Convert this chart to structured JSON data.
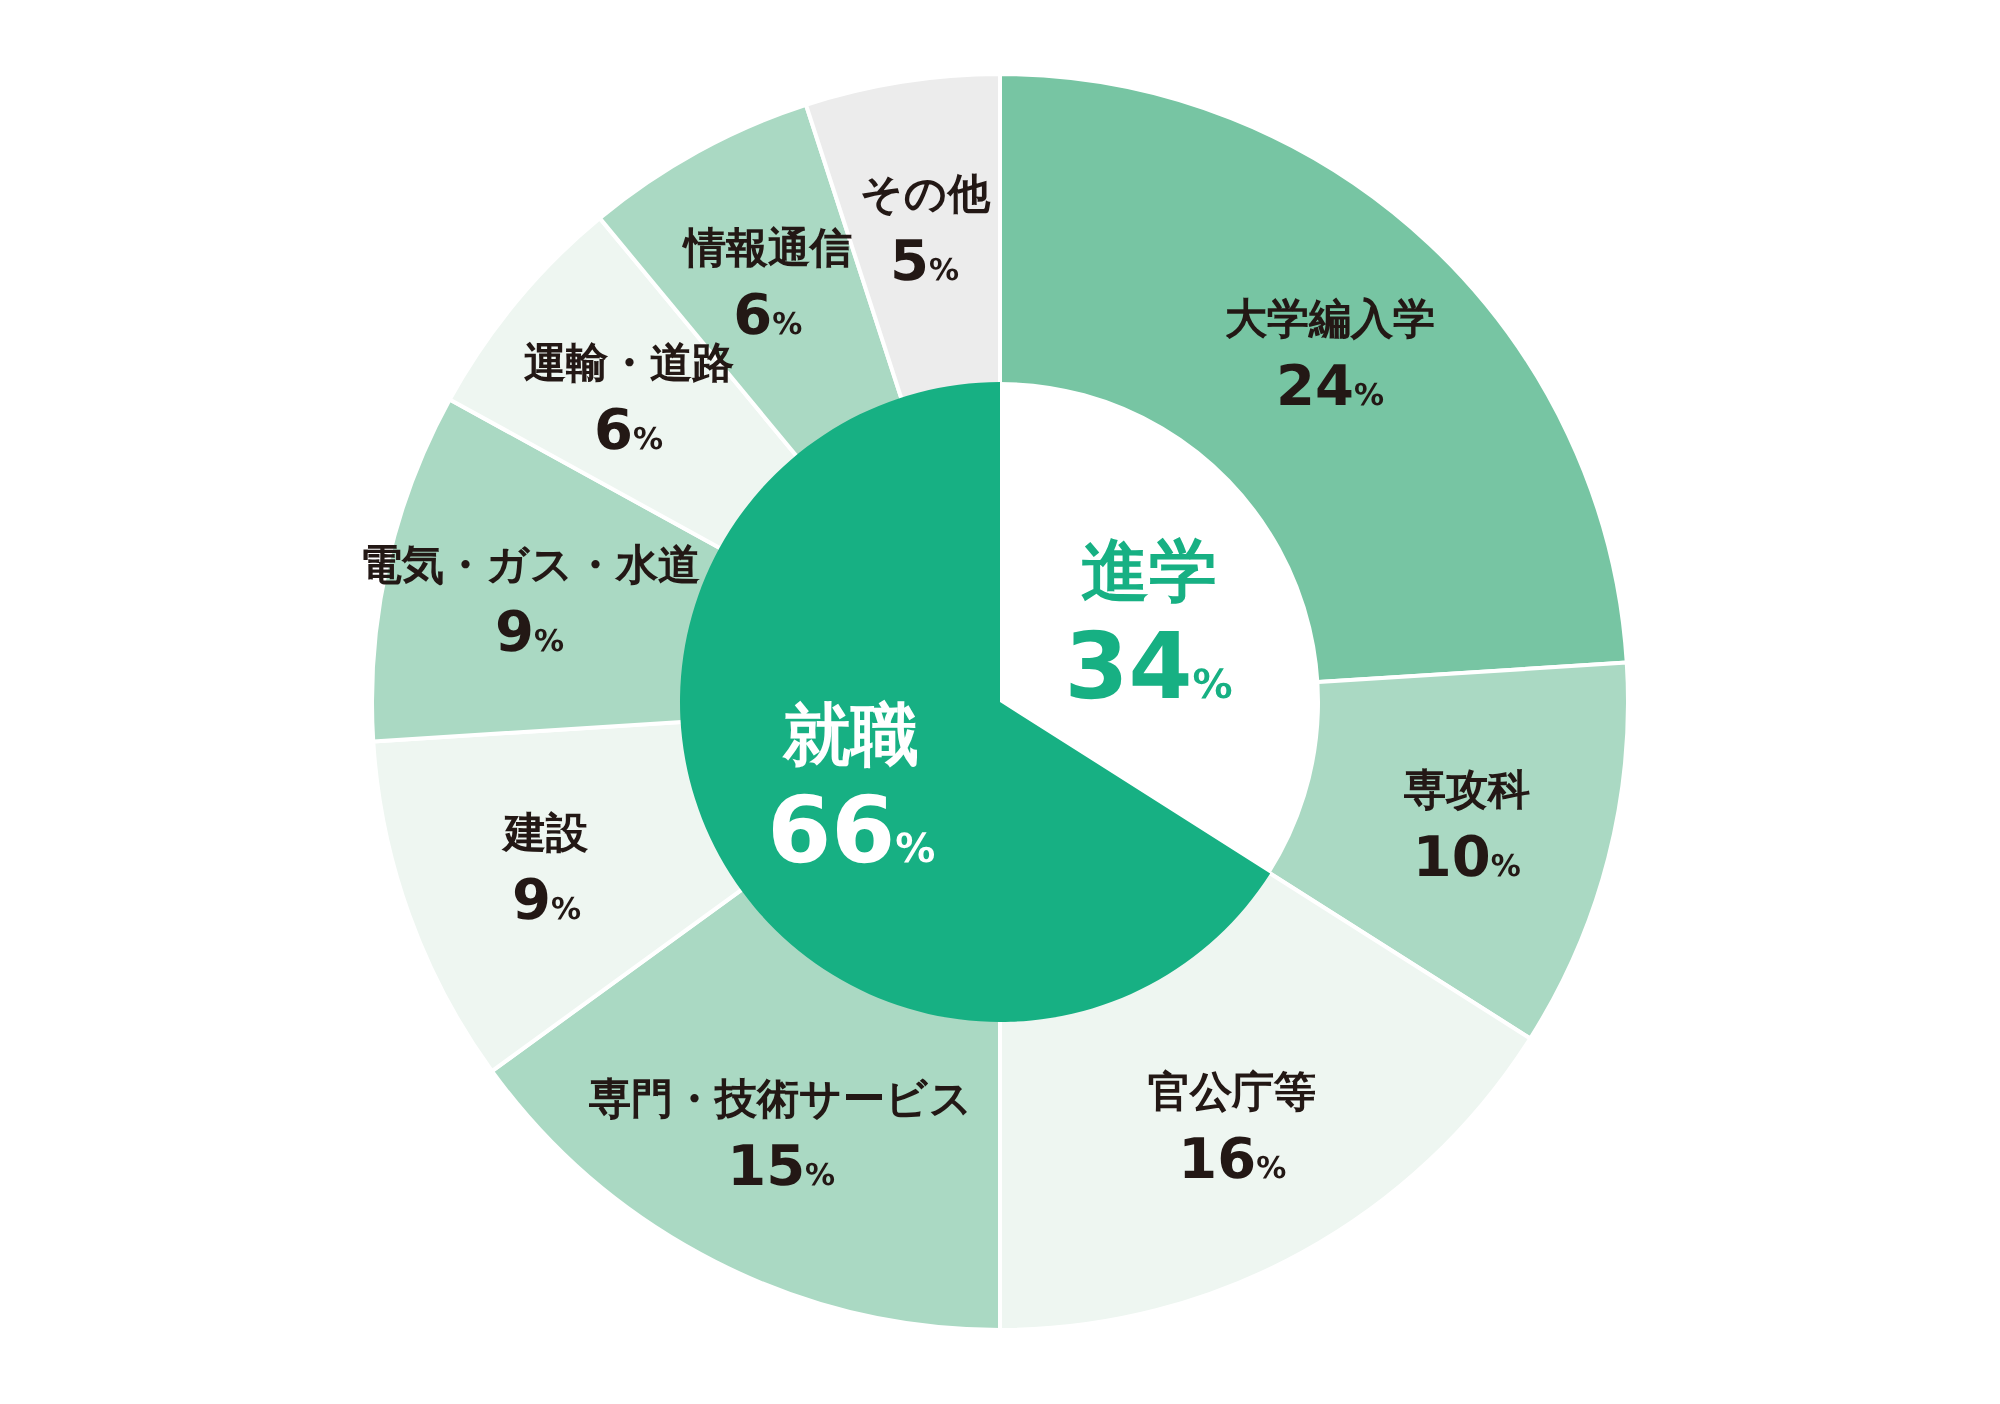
{
  "chart_data": [
    {
      "type": "pie",
      "categories": [
        "進学",
        "就職"
      ],
      "values": [
        34,
        66
      ],
      "colors": [
        "#ffffff",
        "#17b083"
      ],
      "value_labels": [
        "34%",
        "66%"
      ],
      "legend": false
    },
    {
      "type": "donut",
      "categories": [
        "大学編入学",
        "専攻科",
        "官公庁等",
        "専門・技術サービス",
        "建設",
        "電気・ガス・水道",
        "運輸・道路",
        "情報通信",
        "その他"
      ],
      "values": [
        24,
        10,
        16,
        15,
        9,
        9,
        6,
        6,
        5
      ],
      "colors": [
        "#77c5a3",
        "#aad9c3",
        "#eef6f1",
        "#aad9c3",
        "#eef6f1",
        "#aad9c3",
        "#eef6f1",
        "#aad9c3",
        "#ececec"
      ],
      "value_labels": [
        "24%",
        "10%",
        "16%",
        "15%",
        "9%",
        "9%",
        "6%",
        "6%",
        "5%"
      ],
      "legend": false
    }
  ]
}
